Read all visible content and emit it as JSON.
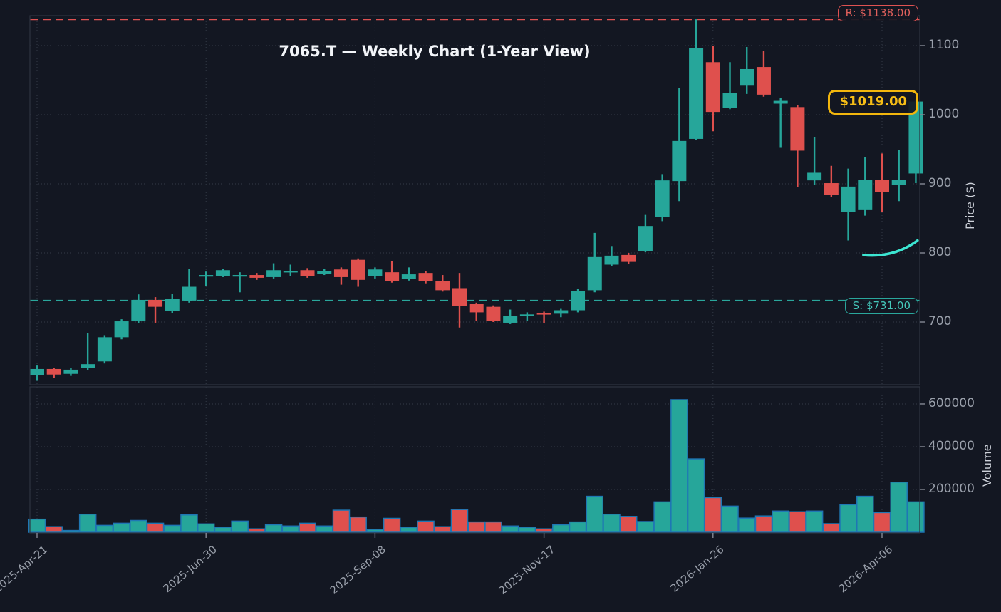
{
  "title": "7065.T — Weekly Chart (1-Year View)",
  "axes": {
    "price_label": "Price ($)",
    "volume_label": "Volume",
    "price_tick_labels": [
      "1100",
      "1000",
      "900",
      "800",
      "700"
    ],
    "volume_tick_labels": [
      "600000",
      "400000",
      "200000"
    ]
  },
  "levels": {
    "resistance": {
      "label": "R: $1138.00",
      "value": 1138
    },
    "support": {
      "label": "S: $731.00",
      "value": 731
    },
    "current": {
      "label": "$1019.00",
      "value": 1019
    }
  },
  "colors": {
    "background": "#131722",
    "up": "#26a69a",
    "down": "#df504d",
    "volume_bar_edge": "#1f77b4",
    "resistance": "#e05252",
    "support": "#2aa79c",
    "current_price": "#f2b60d",
    "trend_line": "#3ce6d2",
    "grid": "#343b48",
    "spine": "#2e3440",
    "tick_text": "#9aa0ab"
  },
  "chart_data": {
    "type": "candlestick+volume",
    "timeframe": "weekly",
    "symbol": "7065.T",
    "price_ylim": [
      609,
      1143
    ],
    "volume_ylim": [
      0,
      680000
    ],
    "price_gridlines": [
      700,
      800,
      900,
      1000,
      1100
    ],
    "volume_gridlines": [
      200000,
      400000,
      600000
    ],
    "x_tick_labels": [
      "2025-Apr-21",
      "2025-Jun-30",
      "2025-Sep-08",
      "2025-Nov-17",
      "2026-Jan-26",
      "2026-Apr-06"
    ],
    "x_tick_indices": [
      0,
      10,
      20,
      30,
      40,
      50
    ],
    "resistance": 1138,
    "support": 731,
    "current_price": 1019,
    "columns": [
      "open",
      "high",
      "low",
      "close",
      "volume"
    ],
    "candles": [
      [
        623,
        637,
        615,
        632,
        61000
      ],
      [
        632,
        634,
        619,
        624,
        26000
      ],
      [
        625,
        633,
        622,
        631,
        8000
      ],
      [
        633,
        684,
        630,
        639,
        84000
      ],
      [
        643,
        681,
        640,
        678,
        32000
      ],
      [
        678,
        704,
        675,
        701,
        42000
      ],
      [
        701,
        740,
        698,
        732,
        55000
      ],
      [
        732,
        736,
        699,
        722,
        42000
      ],
      [
        716,
        741,
        713,
        734,
        32000
      ],
      [
        731,
        777,
        728,
        751,
        81000
      ],
      [
        766,
        773,
        752,
        768,
        39000
      ],
      [
        767,
        777,
        765,
        775,
        23000
      ],
      [
        766,
        772,
        743,
        768,
        52000
      ],
      [
        768,
        771,
        761,
        764,
        16000
      ],
      [
        765,
        785,
        763,
        775,
        35000
      ],
      [
        773,
        783,
        767,
        774,
        29000
      ],
      [
        775,
        778,
        764,
        767,
        42000
      ],
      [
        770,
        777,
        768,
        774,
        29000
      ],
      [
        776,
        779,
        754,
        765,
        103000
      ],
      [
        790,
        792,
        751,
        761,
        71000
      ],
      [
        766,
        779,
        763,
        776,
        13000
      ],
      [
        772,
        788,
        757,
        759,
        65000
      ],
      [
        762,
        779,
        760,
        769,
        23000
      ],
      [
        771,
        774,
        756,
        759,
        52000
      ],
      [
        759,
        768,
        744,
        746,
        26000
      ],
      [
        749,
        771,
        692,
        723,
        106000
      ],
      [
        726,
        728,
        702,
        714,
        48000
      ],
      [
        722,
        724,
        700,
        702,
        48000
      ],
      [
        699,
        718,
        697,
        709,
        29000
      ],
      [
        709,
        714,
        702,
        711,
        23000
      ],
      [
        713,
        715,
        698,
        711,
        16000
      ],
      [
        712,
        719,
        707,
        717,
        35000
      ],
      [
        717,
        748,
        714,
        745,
        48000
      ],
      [
        746,
        829,
        743,
        794,
        168000
      ],
      [
        783,
        810,
        781,
        796,
        84000
      ],
      [
        797,
        800,
        784,
        787,
        74000
      ],
      [
        803,
        855,
        801,
        839,
        50000
      ],
      [
        852,
        914,
        846,
        905,
        142000
      ],
      [
        904,
        1039,
        875,
        962,
        620000
      ],
      [
        965,
        1138,
        963,
        1096,
        343000
      ],
      [
        1076,
        1100,
        976,
        1004,
        162000
      ],
      [
        1010,
        1076,
        1008,
        1031,
        122000
      ],
      [
        1042,
        1098,
        1030,
        1066,
        66000
      ],
      [
        1069,
        1092,
        1026,
        1029,
        76000
      ],
      [
        1016,
        1024,
        952,
        1020,
        99000
      ],
      [
        1011,
        1014,
        895,
        948,
        96000
      ],
      [
        905,
        968,
        898,
        916,
        99000
      ],
      [
        901,
        926,
        881,
        884,
        40000
      ],
      [
        859,
        922,
        818,
        896,
        129000
      ],
      [
        862,
        939,
        854,
        906,
        168000
      ],
      [
        906,
        944,
        859,
        888,
        92000
      ],
      [
        898,
        949,
        875,
        906,
        234000
      ],
      [
        915,
        1022,
        901,
        1019,
        142000
      ]
    ],
    "trend_line_points": [
      [
        49.9,
        797
      ],
      [
        51.6,
        800
      ],
      [
        53.1,
        818
      ]
    ]
  }
}
